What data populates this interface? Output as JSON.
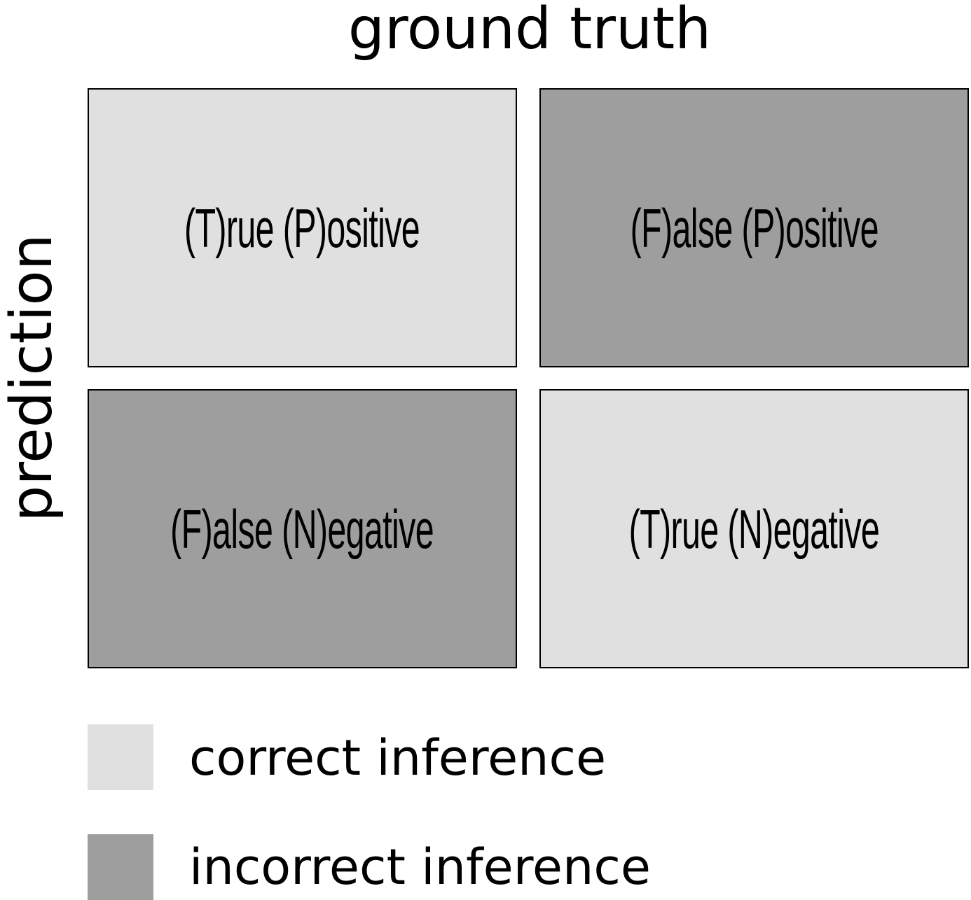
{
  "column_title": "ground truth",
  "row_title": "prediction",
  "colors": {
    "correct": "#e0e0e0",
    "incorrect": "#9e9e9e",
    "border": "#000000"
  },
  "matrix": {
    "true_positive": {
      "label": "(T)rue (P)ositive",
      "category": "correct"
    },
    "false_positive": {
      "label": "(F)alse (P)ositive",
      "category": "incorrect"
    },
    "false_negative": {
      "label": "(F)alse (N)egative",
      "category": "incorrect"
    },
    "true_negative": {
      "label": "(T)rue (N)egative",
      "category": "correct"
    }
  },
  "legend": {
    "correct": "correct inference",
    "incorrect": "incorrect inference"
  }
}
